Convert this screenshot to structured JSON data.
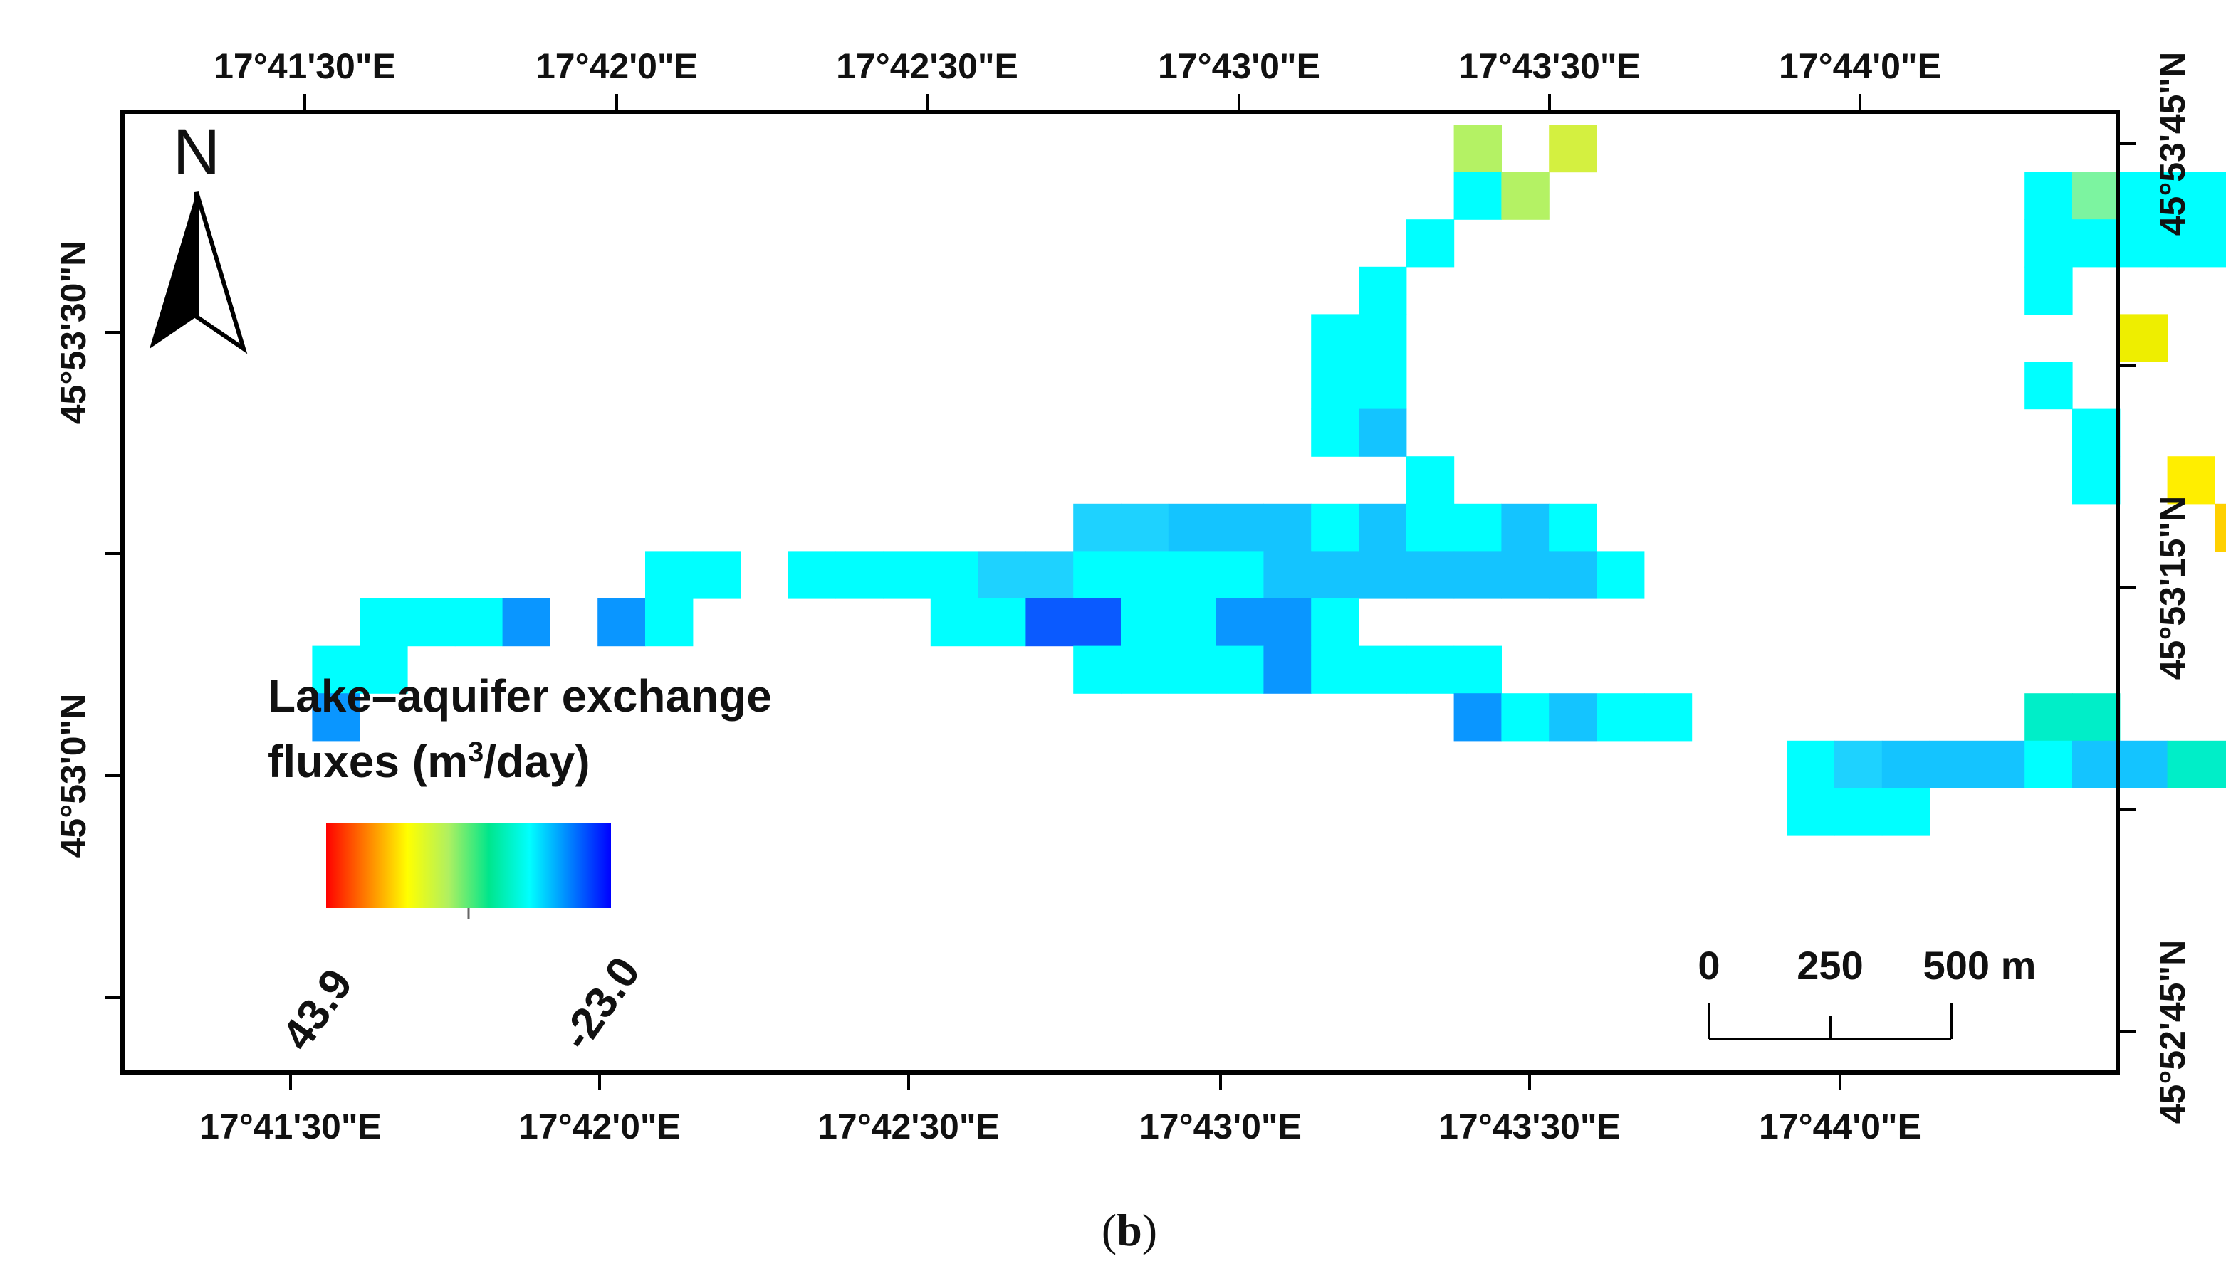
{
  "top_lon_labels": [
    "17°41'30\"E",
    "17°42'0\"E",
    "17°42'30\"E",
    "17°43'0\"E",
    "17°43'30\"E",
    "17°44'0\"E"
  ],
  "bottom_lon_labels": [
    "17°41'30\"E",
    "17°42'0\"E",
    "17°42'30\"E",
    "17°43'0\"E",
    "17°43'30\"E",
    "17°44'0\"E"
  ],
  "left_lat_labels": [
    "45°53'30\"N",
    "45°53'0\"N"
  ],
  "right_lat_labels": [
    "45°53'45\"N",
    "45°53'15\"N",
    "45°52'45\"N"
  ],
  "north_arrow": {
    "letter": "N",
    "icon": "north-arrow-icon"
  },
  "legend": {
    "title_line1": "Lake–aquifer exchange",
    "title_line2_prefix": "fluxes (m",
    "title_line2_sup": "3",
    "title_line2_suffix": "/day)",
    "max_label": "43.9",
    "min_label": "-23.0",
    "ramp_colors": [
      "#ff0000",
      "#ff8000",
      "#ffff00",
      "#b0f060",
      "#00e68c",
      "#00ffff",
      "#0080ff",
      "#0000ff"
    ]
  },
  "scale_bar": {
    "labels": [
      "0",
      "250",
      "500 m"
    ]
  },
  "caption": {
    "open": "(",
    "letter": "b",
    "close": ")"
  },
  "cell_colors": {
    "c": "#00ffff",
    "l": "#1ed2ff",
    "m": "#14c4ff",
    "b": "#0a96ff",
    "d": "#0a5aff",
    "v": "#1414ff",
    "t": "#00eec8",
    "g": "#4cf09c",
    "q": "#7cf4a0",
    "h": "#b4f264",
    "k": "#d4f040",
    "y": "#eeee00",
    "Y": "#ffee00",
    "o": "#ffd000",
    "O": "#ff9600",
    "r": "#ff1400",
    "R": "#ff3200"
  },
  "raster_rows": [
    "...........................h.k..........................ccmmmmb.....",
    "....................................................................",
    "...........................ch..........cqccccg....c...........cv....",
    "....................................................................",
    "..........................c............ccccccccccc................cv",
    "....................................................................",
    ".........................c.............c.......tc.c..........ddb....",
    "....................................................................",
    "........................cc...............y........qtt........c.....",
    "....................................................................",
    "........................cc.............c...........c...........b...",
    "....................................................................",
    "........................cm..............c..........q.q...........db.",
    "....................................................................",
    "..........................c.............c.Y.........h.............b",
    "....................................................................",
    "...................llmmmcmccmc.............or........q............d",
    "....................................................................",
    "..........cc.ccccllccccmmmmmmmc..............cR.......h.............",
    "....................................................................",
    "....cccb.bc.....ccddccbbc....................cc.......k.............",
    "....................................................................",
    "...cc..............ccccbcccc..................g...c...k.............",
    "....................................................................",
    "...b.......................bcmcc.......tt..............R...Y........",
    "....................................................................",
    "..................................clmmmcmmtt..........rr............",
    "....................................................................",
    "..................................ccc..............................O",
    "....................................................................",
    "......................................................c.............",
    "....................................................................",
    "......................................................ttgh..........",
    "....................................................................",
    "....................................................ccttghh.........",
    "....................................................................",
    "..................................................ccccc.............",
    "....................................................................",
    ".................................................c.................."
  ]
}
